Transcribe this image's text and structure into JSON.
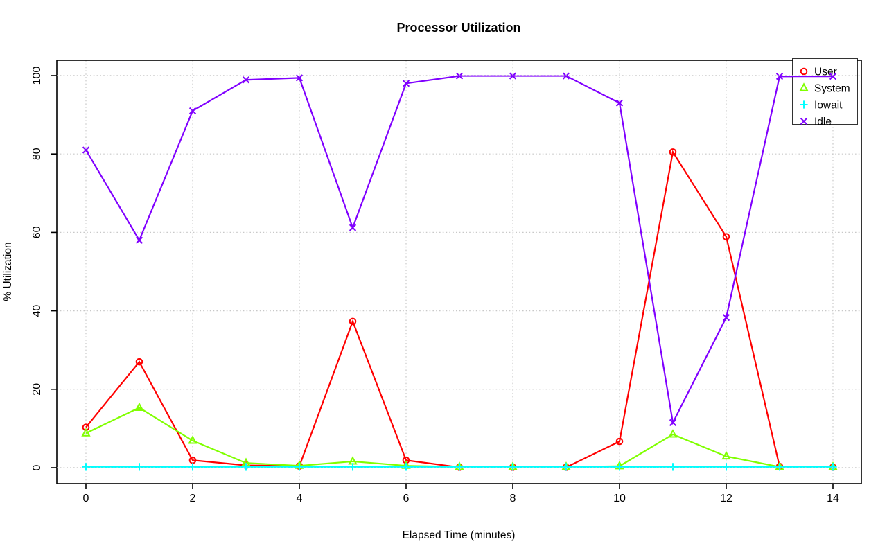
{
  "chart_data": {
    "type": "line",
    "title": "Processor Utilization",
    "xlabel": "Elapsed Time (minutes)",
    "ylabel": "% Utilization",
    "x": [
      0,
      1,
      2,
      3,
      4,
      5,
      6,
      7,
      8,
      9,
      10,
      11,
      12,
      13,
      14
    ],
    "x_ticks": [
      0,
      2,
      4,
      6,
      8,
      10,
      12,
      14
    ],
    "y_ticks": [
      0,
      20,
      40,
      60,
      80,
      100
    ],
    "xlim": [
      -0.56,
      14.56
    ],
    "ylim": [
      -4,
      104
    ],
    "grid": "dotted",
    "grid_color": "#c8c8c8",
    "legend_position": "top-right",
    "series": [
      {
        "name": "User",
        "color": "#ff0000",
        "marker": "circle",
        "values": [
          10.3,
          27.0,
          1.9,
          0.6,
          0.4,
          37.3,
          1.9,
          0.1,
          0.1,
          0.1,
          6.7,
          80.5,
          58.9,
          0.3,
          0.1
        ]
      },
      {
        "name": "System",
        "color": "#80ff00",
        "marker": "triangle",
        "values": [
          8.8,
          15.3,
          6.9,
          1.2,
          0.5,
          1.6,
          0.5,
          0.2,
          0.2,
          0.2,
          0.4,
          8.5,
          2.9,
          0.2,
          0.2
        ]
      },
      {
        "name": "Iowait",
        "color": "#00ffff",
        "marker": "plus",
        "values": [
          0.2,
          0.2,
          0.2,
          0.2,
          0.2,
          0.2,
          0.2,
          0.2,
          0.2,
          0.2,
          0.2,
          0.2,
          0.2,
          0.2,
          0.2
        ]
      },
      {
        "name": "Idle",
        "color": "#8000ff",
        "marker": "x",
        "values": [
          81.0,
          58.0,
          91.0,
          98.9,
          99.4,
          61.2,
          98.0,
          99.9,
          99.9,
          99.9,
          93.0,
          11.5,
          38.3,
          99.8,
          99.8
        ]
      }
    ]
  }
}
